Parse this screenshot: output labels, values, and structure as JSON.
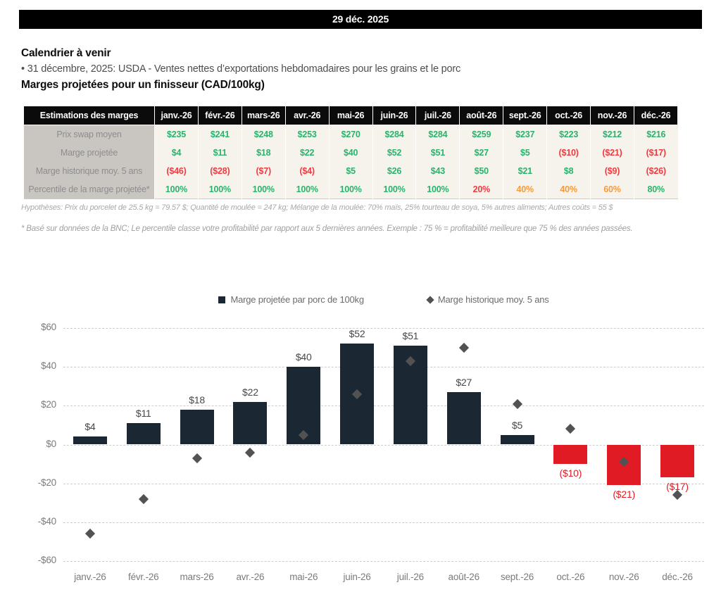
{
  "page": {
    "title_bar": "29 déc. 2025"
  },
  "calendar": {
    "heading": "Calendrier à venir",
    "items": [
      "• 31 décembre, 2025: USDA - Ventes nettes d’exportations hebdomadaires pour les grains et le porc"
    ]
  },
  "margins_section": {
    "heading": "Marges projetées pour un finisseur (CAD/100kg)",
    "table": {
      "header": [
        "Estimations des marges",
        "janv.-26",
        "févr.-26",
        "mars-26",
        "avr.-26",
        "mai-26",
        "juin-26",
        "juil.-26",
        "août-26",
        "sept.-26",
        "oct.-26",
        "nov.-26",
        "déc.-26"
      ],
      "rows": [
        {
          "label": "Prix swap moyen",
          "values": [
            "$235",
            "$241",
            "$248",
            "$253",
            "$270",
            "$284",
            "$284",
            "$259",
            "$237",
            "$223",
            "$212",
            "$216"
          ],
          "colors": [
            "green",
            "green",
            "green",
            "green",
            "green",
            "green",
            "green",
            "green",
            "green",
            "green",
            "green",
            "green"
          ]
        },
        {
          "label": "Marge projetée",
          "values": [
            "$4",
            "$11",
            "$18",
            "$22",
            "$40",
            "$52",
            "$51",
            "$27",
            "$5",
            "($10)",
            "($21)",
            "($17)"
          ],
          "colors": [
            "green",
            "green",
            "green",
            "green",
            "green",
            "green",
            "green",
            "green",
            "green",
            "red",
            "red",
            "red"
          ]
        },
        {
          "label": "Marge historique moy. 5 ans",
          "values": [
            "($46)",
            "($28)",
            "($7)",
            "($4)",
            "$5",
            "$26",
            "$43",
            "$50",
            "$21",
            "$8",
            "($9)",
            "($26)"
          ],
          "colors": [
            "red",
            "red",
            "red",
            "red",
            "green",
            "green",
            "green",
            "green",
            "green",
            "green",
            "red",
            "red"
          ]
        },
        {
          "label": "Percentile de la marge projetée*",
          "values": [
            "100%",
            "100%",
            "100%",
            "100%",
            "100%",
            "100%",
            "100%",
            "20%",
            "40%",
            "40%",
            "60%",
            "80%"
          ],
          "colors": [
            "green",
            "green",
            "green",
            "green",
            "green",
            "green",
            "green",
            "red",
            "orange",
            "orange",
            "orange",
            "green"
          ]
        }
      ],
      "status_colors": {
        "green": "#2bb26d",
        "red": "#ee3b42",
        "orange": "#f59a3c"
      }
    },
    "assumptions": "Hypothèses: Prix du porcelet de 25.5 kg = 79.57 $; Quantité de moulée = 247 kg; Mélange de la moulée: 70% maïs, 25% tourteau de soya, 5% autres aliments; Autres coûts = 55 $",
    "footnote": "* Basé sur données de la BNC; Le percentile classe votre profitabilité par rapport aux 5 dernières années. Exemple : 75 % = profitabilité meilleure que 75 % des années passées."
  },
  "chart_data": {
    "type": "bar",
    "categories": [
      "janv.-26",
      "févr.-26",
      "mars-26",
      "avr.-26",
      "mai-26",
      "juin-26",
      "juil.-26",
      "août-26",
      "sept.-26",
      "oct.-26",
      "nov.-26",
      "déc.-26"
    ],
    "series": [
      {
        "name": "Marge projetée par porc de 100kg",
        "type": "bar",
        "values": [
          4,
          11,
          18,
          22,
          40,
          52,
          51,
          27,
          5,
          -10,
          -21,
          -17
        ],
        "labels": [
          "$4",
          "$11",
          "$18",
          "$22",
          "$40",
          "$52",
          "$51",
          "$27",
          "$5",
          "($10)",
          "($21)",
          "($17)"
        ]
      },
      {
        "name": "Marge historique moy. 5 ans",
        "type": "scatter",
        "marker": "diamond",
        "values": [
          -46,
          -28,
          -7,
          -4,
          5,
          26,
          43,
          50,
          21,
          8,
          -9,
          -26
        ]
      }
    ],
    "ylim": [
      -60,
      60
    ],
    "yticks": [
      "$60",
      "$40",
      "$20",
      "$0",
      "-$20",
      "-$40",
      "-$60"
    ],
    "ytick_values": [
      60,
      40,
      20,
      0,
      -20,
      -40,
      -60
    ],
    "grid": "dashed-horizontal",
    "legend_position": "top-center",
    "colors": {
      "bar_positive": "#1b2732",
      "bar_negative": "#e11b23",
      "diamond": "#525252",
      "positive_label": "#474747",
      "negative_label": "#e11b23"
    }
  }
}
